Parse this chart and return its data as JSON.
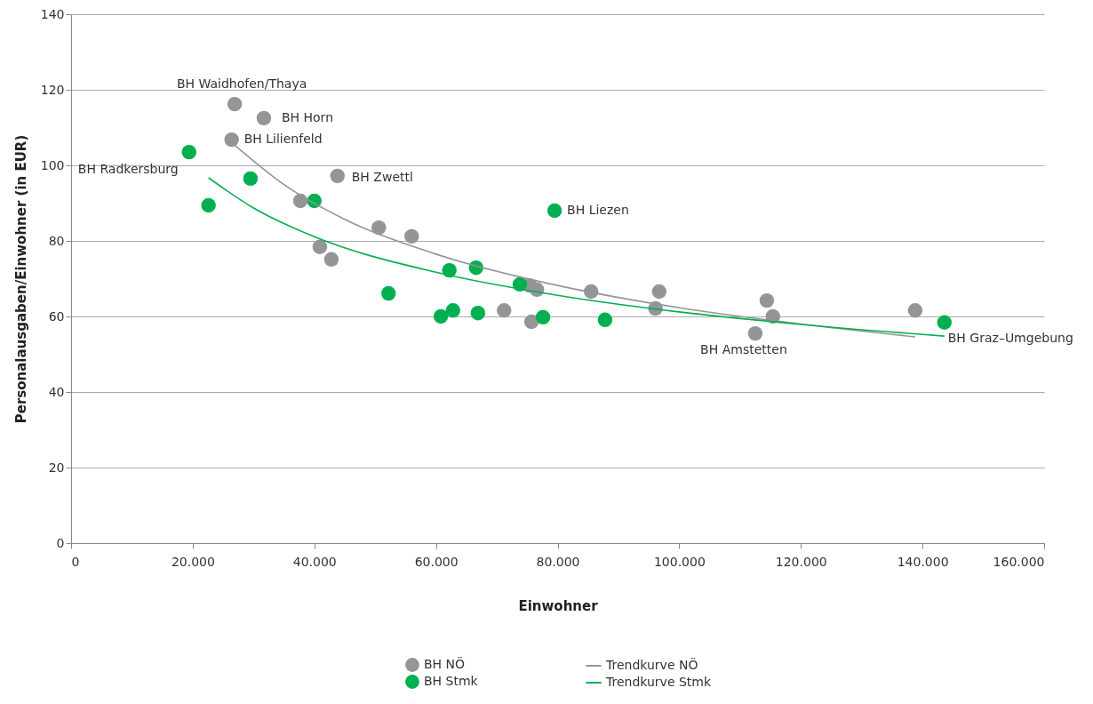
{
  "chart_data": {
    "type": "scatter",
    "xlabel": "Einwohner",
    "ylabel": "Personalausgaben/Einwohner (in EUR)",
    "xlim": [
      0,
      160000
    ],
    "xticks": [
      0,
      {
        "value": 20000,
        "label": "20.000"
      },
      {
        "value": 40000,
        "label": "40.000"
      },
      {
        "value": 60000,
        "label": "60.000"
      },
      {
        "value": 80000,
        "label": "80.000"
      },
      {
        "value": 100000,
        "label": "100.000"
      },
      {
        "value": 120000,
        "label": "120.000"
      },
      {
        "value": 140000,
        "label": "140.000"
      },
      {
        "value": 160000,
        "label": "160.000"
      }
    ],
    "ylim": [
      0,
      140
    ],
    "yticks": [
      0,
      20,
      40,
      60,
      80,
      100,
      120,
      140
    ],
    "grid": "y",
    "legend": "bottom",
    "series": [
      {
        "name": "BH NÖ",
        "marker": "circle",
        "color": "#939598",
        "x": [
          26900,
          31700,
          26400,
          43800,
          37700,
          40900,
          42800,
          50600,
          56000,
          71200,
          75400,
          76600,
          75700,
          85500,
          96700,
          96100,
          114400,
          115400,
          112500,
          138800
        ],
        "values": [
          116.2,
          112.5,
          106.8,
          97.2,
          90.6,
          78.4,
          75.1,
          83.5,
          81.2,
          61.6,
          68.2,
          67.1,
          58.6,
          66.6,
          66.6,
          62.1,
          64.2,
          60.0,
          55.5,
          61.6
        ]
      },
      {
        "name": "BH Stmk",
        "marker": "circle",
        "color": "#00b050",
        "x": [
          19400,
          22600,
          29500,
          40000,
          52200,
          62200,
          66600,
          73800,
          60800,
          62800,
          66900,
          77600,
          87800,
          79500,
          143600
        ],
        "values": [
          103.5,
          89.4,
          96.5,
          90.6,
          66.1,
          72.2,
          72.9,
          68.5,
          60.0,
          61.6,
          60.9,
          59.8,
          59.1,
          88.0,
          58.4
        ]
      },
      {
        "name": "Trendkurve NÖ",
        "type": "line",
        "line_style": "solid",
        "color": "#939598",
        "x": [
          27000,
          35000,
          45000,
          60000,
          80000,
          100000,
          120000,
          138800
        ],
        "values": [
          105.2,
          94.9,
          85.7,
          76.5,
          68.2,
          62.3,
          58.0,
          54.6
        ]
      },
      {
        "name": "Trendkurve Stmk",
        "type": "line",
        "line_style": "solid",
        "color": "#00b050",
        "x": [
          22600,
          30000,
          40000,
          60000,
          80000,
          100000,
          120000,
          143600
        ],
        "values": [
          96.7,
          88.7,
          81.1,
          71.7,
          65.6,
          61.2,
          57.9,
          54.8
        ]
      }
    ],
    "annotations": [
      {
        "text": "BH Waidhofen/Thaya",
        "x": 26900,
        "y": 116.2
      },
      {
        "text": "BH Horn",
        "x": 31700,
        "y": 112.5
      },
      {
        "text": "BH Lilienfeld",
        "x": 26400,
        "y": 106.8
      },
      {
        "text": "BH Zwettl",
        "x": 43800,
        "y": 97.2
      },
      {
        "text": "BH Radkersburg",
        "x": 19400,
        "y": 103.5
      },
      {
        "text": "BH Liezen",
        "x": 79500,
        "y": 88.0
      },
      {
        "text": "BH Amstetten",
        "x": 112500,
        "y": 55.5
      },
      {
        "text": "BH Graz–Umgebung",
        "x": 143600,
        "y": 58.4
      }
    ]
  }
}
